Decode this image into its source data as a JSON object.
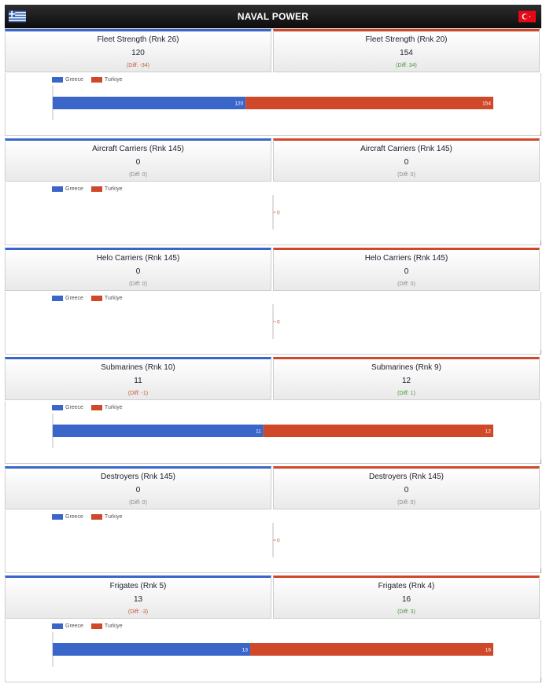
{
  "header": {
    "title": "NAVAL POWER",
    "colors": {
      "greece": "#3a66c9",
      "turkiye": "#d0482a"
    }
  },
  "legend": {
    "greece": "Greece",
    "turkiye": "Turkiye"
  },
  "chart_data": [
    {
      "type": "bar",
      "orientation": "horizontal-stacked",
      "categories": [
        "Fleet Strength"
      ],
      "series": [
        {
          "name": "Greece",
          "values": [
            120
          ]
        },
        {
          "name": "Turkiye",
          "values": [
            154
          ]
        }
      ],
      "stats": {
        "left": {
          "label": "Fleet Strength (Rnk 26)",
          "value": "120",
          "diff": "(Diff: -34)"
        },
        "right": {
          "label": "Fleet Strength (Rnk 20)",
          "value": "154",
          "diff": "(Diff: 34)"
        }
      }
    },
    {
      "type": "bar",
      "orientation": "horizontal-stacked",
      "categories": [
        "Aircraft Carriers"
      ],
      "series": [
        {
          "name": "Greece",
          "values": [
            0
          ]
        },
        {
          "name": "Turkiye",
          "values": [
            0
          ]
        }
      ],
      "stats": {
        "left": {
          "label": "Aircraft Carriers (Rnk 145)",
          "value": "0",
          "diff": "(Diff: 0)"
        },
        "right": {
          "label": "Aircraft Carriers (Rnk 145)",
          "value": "0",
          "diff": "(Diff: 0)"
        }
      }
    },
    {
      "type": "bar",
      "orientation": "horizontal-stacked",
      "categories": [
        "Helo Carriers"
      ],
      "series": [
        {
          "name": "Greece",
          "values": [
            0
          ]
        },
        {
          "name": "Turkiye",
          "values": [
            0
          ]
        }
      ],
      "stats": {
        "left": {
          "label": "Helo Carriers (Rnk 145)",
          "value": "0",
          "diff": "(Diff: 0)"
        },
        "right": {
          "label": "Helo Carriers (Rnk 145)",
          "value": "0",
          "diff": "(Diff: 0)"
        }
      }
    },
    {
      "type": "bar",
      "orientation": "horizontal-stacked",
      "categories": [
        "Submarines"
      ],
      "series": [
        {
          "name": "Greece",
          "values": [
            11
          ]
        },
        {
          "name": "Turkiye",
          "values": [
            12
          ]
        }
      ],
      "stats": {
        "left": {
          "label": "Submarines (Rnk 10)",
          "value": "11",
          "diff": "(Diff: -1)"
        },
        "right": {
          "label": "Submarines (Rnk 9)",
          "value": "12",
          "diff": "(Diff: 1)"
        }
      }
    },
    {
      "type": "bar",
      "orientation": "horizontal-stacked",
      "categories": [
        "Destroyers"
      ],
      "series": [
        {
          "name": "Greece",
          "values": [
            0
          ]
        },
        {
          "name": "Turkiye",
          "values": [
            0
          ]
        }
      ],
      "stats": {
        "left": {
          "label": "Destroyers (Rnk 145)",
          "value": "0",
          "diff": "(Diff: 0)"
        },
        "right": {
          "label": "Destroyers (Rnk 145)",
          "value": "0",
          "diff": "(Diff: 0)"
        }
      }
    },
    {
      "type": "bar",
      "orientation": "horizontal-stacked",
      "categories": [
        "Frigates"
      ],
      "series": [
        {
          "name": "Greece",
          "values": [
            13
          ]
        },
        {
          "name": "Turkiye",
          "values": [
            16
          ]
        }
      ],
      "stats": {
        "left": {
          "label": "Frigates (Rnk 5)",
          "value": "13",
          "diff": "(Diff: -3)"
        },
        "right": {
          "label": "Frigates (Rnk 4)",
          "value": "16",
          "diff": "(Diff: 3)"
        }
      }
    }
  ]
}
